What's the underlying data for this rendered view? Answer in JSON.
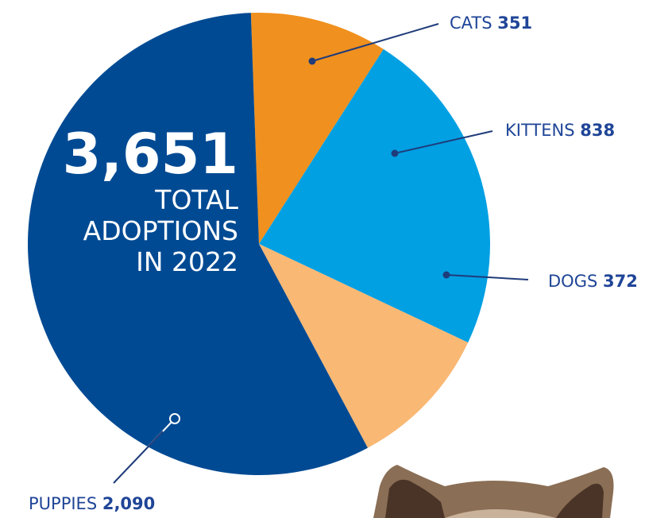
{
  "chart_data": {
    "type": "pie",
    "categories": [
      "CATS",
      "KITTENS",
      "DOGS",
      "PUPPIES"
    ],
    "values": [
      351,
      838,
      372,
      2090
    ],
    "value_labels": [
      "351",
      "838",
      "372",
      "2,090"
    ],
    "colors": [
      "#f0901e",
      "#00a0e3",
      "#f9b874",
      "#004a93"
    ],
    "center_value": {
      "value": 3651,
      "label": "3,651"
    },
    "center_text": [
      "TOTAL",
      "ADOPTIONS",
      "IN 2022"
    ]
  }
}
